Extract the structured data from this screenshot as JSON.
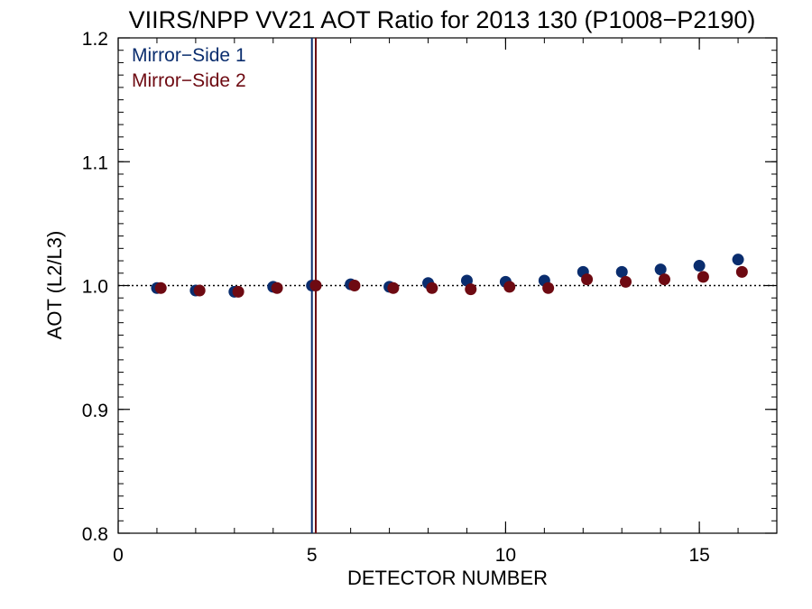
{
  "chart_data": {
    "type": "scatter",
    "title": "VIIRS/NPP VV21 AOT Ratio for 2013 130 (P1008−P2190)",
    "xlabel": "DETECTOR NUMBER",
    "ylabel": "AOT (L2/L3)",
    "xlim": [
      0,
      17
    ],
    "ylim": [
      0.8,
      1.2
    ],
    "x_ticks": [
      {
        "value": 0,
        "label": "0"
      },
      {
        "value": 5,
        "label": "5"
      },
      {
        "value": 10,
        "label": "10"
      },
      {
        "value": 15,
        "label": "15"
      }
    ],
    "y_ticks": [
      {
        "value": 0.8,
        "label": "0.8"
      },
      {
        "value": 0.9,
        "label": "0.9"
      },
      {
        "value": 1.0,
        "label": "1.0"
      },
      {
        "value": 1.1,
        "label": "1.1"
      },
      {
        "value": 1.2,
        "label": "1.2"
      }
    ],
    "reference_line": {
      "y": 1.0,
      "style": "dotted"
    },
    "vertical_lines": [
      {
        "x": 5.0,
        "color": "#0a2d6e"
      },
      {
        "x": 5.1,
        "color": "#6e0a12"
      }
    ],
    "legend_position": "top-left",
    "series": [
      {
        "name": "Mirror−Side 1",
        "color": "#0a2d6e",
        "x": [
          1,
          2,
          3,
          4,
          5,
          6,
          7,
          8,
          9,
          10,
          11,
          12,
          13,
          14,
          15,
          16
        ],
        "y": [
          0.998,
          0.996,
          0.995,
          0.999,
          1.0,
          1.001,
          0.999,
          1.002,
          1.004,
          1.003,
          1.004,
          1.011,
          1.011,
          1.013,
          1.016,
          1.021
        ]
      },
      {
        "name": "Mirror−Side 2",
        "color": "#6e0a12",
        "x": [
          1.1,
          2.1,
          3.1,
          4.1,
          5.1,
          6.1,
          7.1,
          8.1,
          9.1,
          10.1,
          11.1,
          12.1,
          13.1,
          14.1,
          15.1,
          16.1
        ],
        "y": [
          0.998,
          0.996,
          0.995,
          0.998,
          1.0,
          1.0,
          0.998,
          0.998,
          0.997,
          0.999,
          0.998,
          1.005,
          1.003,
          1.005,
          1.007,
          1.011
        ]
      }
    ]
  }
}
